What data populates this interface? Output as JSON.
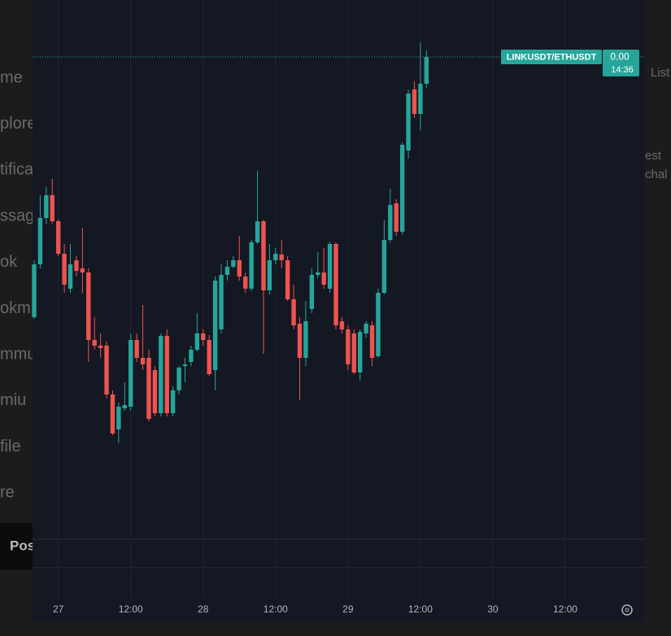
{
  "chart_data": {
    "type": "candlestick",
    "symbol": "LINKUSDT/ETHUSDT",
    "last_price_label": "0.00",
    "countdown": "14:36",
    "up_color": "#26a69a",
    "down_color": "#ef5350",
    "open": [
      31.0,
      37.5,
      43.2,
      46.0,
      42.8,
      38.8,
      34.5,
      38.0,
      37.0,
      36.5,
      28.2,
      27.5,
      27.5,
      21.5,
      17.2,
      19.8,
      20.0,
      28.2,
      26.0,
      26.0,
      24.5,
      19.2,
      28.7,
      19.2,
      22.0,
      25.0,
      25.5,
      27.0,
      29.0,
      28.2,
      24.5,
      29.5,
      36.2,
      37.2,
      38.0,
      36.0,
      34.5,
      40.2,
      42.8,
      34.3,
      38.0,
      38.7,
      38.0,
      33.2,
      30.2,
      26.0,
      32.0,
      36.2,
      36.5,
      34.5,
      40.0,
      30.5,
      29.5,
      29.0,
      24.2,
      29.0,
      30.0,
      26.2,
      34.0,
      40.5,
      45.0,
      41.5,
      51.5,
      59.0,
      56.0,
      59.7
    ],
    "high": [
      38.0,
      46.0,
      47.0,
      48.0,
      43.0,
      40.0,
      40.0,
      38.5,
      42.0,
      37.0,
      31.0,
      29.0,
      28.0,
      22.0,
      20.5,
      23.0,
      29.0,
      29.0,
      32.5,
      27.0,
      25.0,
      29.0,
      29.5,
      22.5,
      25.0,
      26.0,
      27.5,
      31.5,
      29.5,
      28.8,
      36.0,
      37.5,
      38.0,
      38.5,
      41.0,
      36.5,
      40.5,
      49.0,
      43.0,
      40.0,
      39.5,
      40.5,
      38.5,
      35.0,
      31.0,
      33.0,
      37.0,
      39.0,
      39.5,
      40.3,
      40.2,
      31.0,
      30.0,
      29.5,
      29.5,
      30.5,
      30.5,
      34.5,
      43.0,
      46.8,
      45.5,
      52.5,
      59.0,
      60.0,
      64.8,
      63.8
    ],
    "low": [
      30.8,
      37.0,
      42.5,
      42.5,
      38.5,
      34.0,
      34.0,
      36.0,
      34.0,
      25.5,
      27.0,
      26.0,
      21.0,
      16.5,
      15.5,
      19.5,
      19.5,
      25.5,
      24.5,
      18.2,
      18.8,
      18.8,
      18.8,
      18.8,
      21.5,
      23.0,
      25.0,
      26.8,
      27.5,
      23.8,
      22.0,
      29.0,
      35.5,
      37.0,
      35.5,
      34.0,
      34.2,
      40.0,
      26.5,
      33.8,
      37.5,
      37.0,
      33.0,
      29.5,
      20.8,
      25.0,
      31.5,
      35.8,
      34.5,
      34.0,
      29.5,
      29.0,
      24.5,
      24.0,
      23.2,
      28.5,
      25.0,
      26.0,
      33.8,
      40.2,
      41.0,
      41.2,
      50.5,
      55.5,
      54.0,
      59.2
    ],
    "close": [
      37.5,
      43.2,
      46.0,
      42.8,
      38.8,
      35.0,
      37.5,
      36.7,
      36.5,
      28.2,
      27.5,
      27.2,
      21.5,
      16.7,
      20.0,
      20.2,
      28.2,
      26.0,
      25.2,
      18.5,
      19.2,
      28.7,
      19.2,
      22.0,
      24.8,
      25.2,
      27.0,
      29.0,
      28.2,
      24.0,
      35.5,
      36.2,
      37.2,
      38.0,
      36.0,
      34.5,
      40.2,
      42.8,
      34.3,
      38.0,
      38.8,
      38.0,
      33.2,
      30.0,
      26.0,
      30.5,
      36.2,
      36.5,
      35.0,
      40.0,
      30.0,
      29.5,
      25.2,
      24.2,
      29.2,
      30.2,
      26.0,
      34.0,
      40.5,
      44.8,
      41.5,
      52.2,
      58.5,
      56.0,
      59.7,
      63.0
    ],
    "ylim": [
      3.7,
      70
    ],
    "xlim": [
      -0.27,
      101.21
    ],
    "xticks": [
      {
        "value": 4,
        "label": "27"
      },
      {
        "value": 16,
        "label": "12:00"
      },
      {
        "value": 28,
        "label": "28"
      },
      {
        "value": 40,
        "label": "12:00"
      },
      {
        "value": 52,
        "label": "29"
      },
      {
        "value": 64,
        "label": "12:00"
      },
      {
        "value": 76,
        "label": "30"
      },
      {
        "value": 88,
        "label": "12:00"
      }
    ],
    "grid": true
  },
  "background": {
    "sidebar_items": [
      "me",
      "plore",
      "tifica",
      "ssag",
      "ok",
      "okm",
      "mmu",
      "miu",
      "file",
      "re"
    ],
    "post_button": "Pos",
    "right_items": [
      "List",
      "est",
      "chal"
    ]
  }
}
